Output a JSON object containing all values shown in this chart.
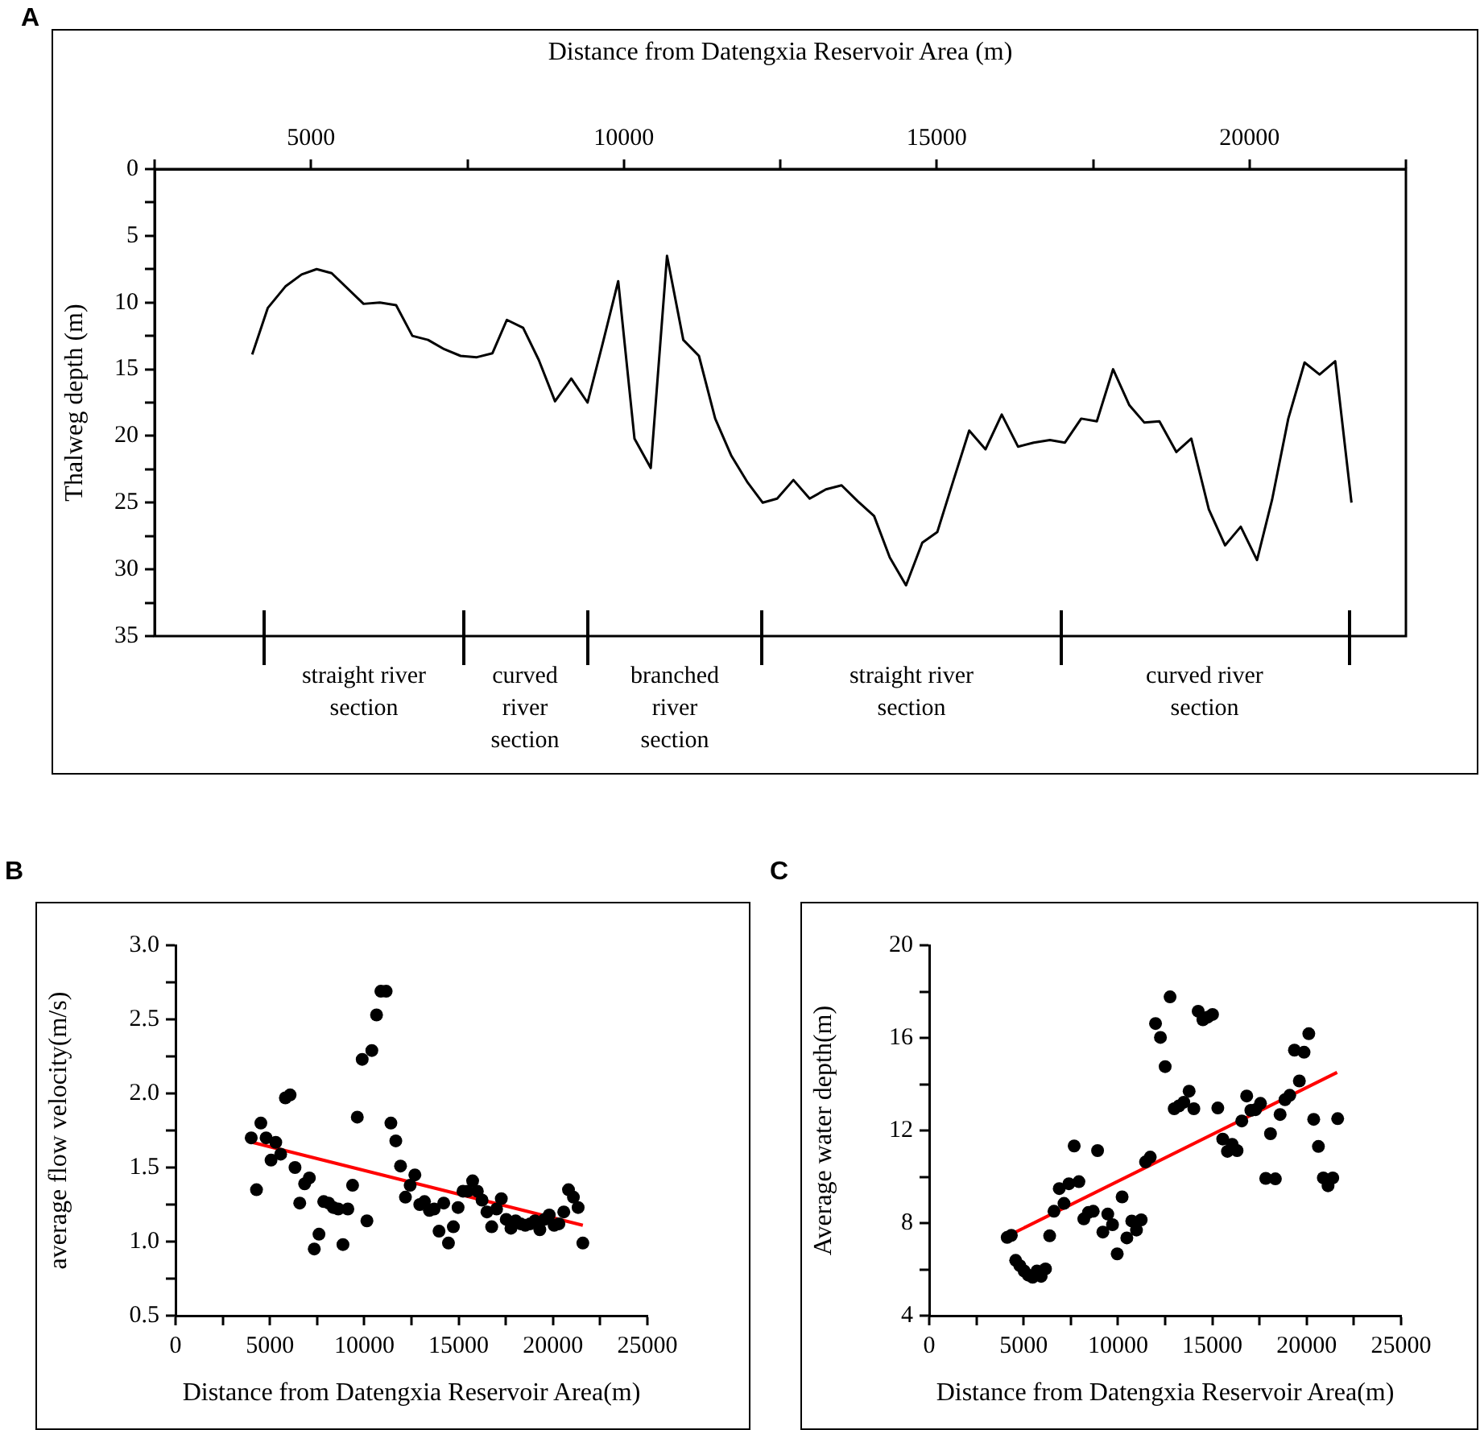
{
  "chart_data": [
    {
      "type": "line",
      "annotations": [
        "A",
        "straight river\nsection",
        "curved\nriver\nsection",
        "branched\nriver\nsection",
        "straight river\nsection",
        "curved river\nsection"
      ],
      "xlabel": "Distance from Datengxia Reservoir Area (m)",
      "ylabel": "Thalweg depth (m)",
      "color": "#000000",
      "marker": "none",
      "x": [
        4060,
        4310,
        4590,
        4850,
        5090,
        5330,
        5840,
        6100,
        6360,
        6620,
        6870,
        7130,
        7390,
        7650,
        7900,
        8130,
        8390,
        8640,
        8900,
        9160,
        9420,
        9660,
        9910,
        10170,
        10430,
        10690,
        10950,
        11200,
        11460,
        11720,
        11980,
        12220,
        12450,
        12710,
        12970,
        13230,
        13480,
        13740,
        14000,
        14250,
        14510,
        14770,
        15010,
        15270,
        15520,
        15780,
        16040,
        16300,
        16550,
        16810,
        17050,
        17310,
        17560,
        17820,
        18080,
        18320,
        18560,
        18830,
        19070,
        19350,
        19610,
        19860,
        20120,
        20360,
        20620,
        20880,
        21120,
        21370,
        21630
      ],
      "values": [
        13.9,
        10.4,
        8.8,
        7.9,
        7.5,
        7.8,
        10.1,
        10.0,
        10.2,
        12.5,
        12.8,
        13.5,
        14.0,
        14.1,
        13.8,
        11.3,
        11.9,
        14.3,
        17.4,
        15.7,
        17.5,
        13.1,
        8.4,
        20.2,
        22.4,
        6.5,
        12.8,
        14.0,
        18.7,
        21.5,
        23.5,
        25.0,
        24.7,
        23.3,
        24.7,
        24.0,
        23.7,
        24.9,
        26.0,
        29.1,
        31.2,
        28.0,
        27.2,
        23.3,
        19.6,
        21.0,
        18.4,
        20.8,
        20.5,
        20.3,
        20.5,
        18.7,
        18.9,
        15.0,
        17.7,
        19.0,
        18.9,
        21.2,
        20.2,
        25.5,
        28.2,
        26.8,
        29.3,
        24.8,
        18.7,
        14.5,
        15.4,
        14.4,
        25.0
      ],
      "xlim": [
        2500,
        22500
      ],
      "xticks": [
        {
          "value": 2500,
          "label": null
        },
        5000,
        {
          "value": 7500,
          "label": null
        },
        10000,
        {
          "value": 12500,
          "label": null
        },
        15000,
        {
          "value": 17500,
          "label": null
        },
        20000,
        {
          "value": 22500,
          "label": null
        }
      ],
      "ylim": [
        35,
        0
      ],
      "yticks": [
        0,
        {
          "value": 2.5,
          "label": null
        },
        5,
        {
          "value": 7.5,
          "label": null
        },
        10,
        {
          "value": 12.5,
          "label": null
        },
        15,
        {
          "value": 17.5,
          "label": null
        },
        20,
        {
          "value": 22.5,
          "label": null
        },
        25,
        {
          "value": 27.5,
          "label": null
        },
        30,
        {
          "value": 32.5,
          "label": null
        },
        35
      ]
    },
    {
      "type": "scatter",
      "annotations": [
        "B"
      ],
      "xlabel": "Distance from Datengxia Reservoir Area(m)",
      "ylabel": "average flow velocity(m/s)",
      "xlim": [
        0,
        25000
      ],
      "xticks": [
        0,
        {
          "value": 2500,
          "label": null
        },
        5000,
        {
          "value": 7500,
          "label": null
        },
        10000,
        {
          "value": 12500,
          "label": null
        },
        15000,
        {
          "value": 17500,
          "label": null
        },
        20000,
        {
          "value": 22500,
          "label": null
        },
        25000
      ],
      "ylim": [
        0.5,
        3.0
      ],
      "yticks": [
        {
          "value": 0.5,
          "label": "0.5"
        },
        {
          "value": 0.75,
          "label": null
        },
        {
          "value": 1,
          "label": "1.0"
        },
        {
          "value": 1.25,
          "label": null
        },
        {
          "value": 1.5,
          "label": "1.5"
        },
        {
          "value": 1.75,
          "label": null
        },
        {
          "value": 2,
          "label": "2.0"
        },
        {
          "value": 2.25,
          "label": null
        },
        {
          "value": 2.5,
          "label": "2.5"
        },
        {
          "value": 2.75,
          "label": null
        },
        {
          "value": 3,
          "label": "3.0"
        }
      ],
      "series": [
        {
          "type": "scatter",
          "color": "#000000",
          "marker": "circle",
          "x": [
            4010,
            4290,
            4520,
            4800,
            5060,
            5310,
            5570,
            5820,
            6070,
            6330,
            6580,
            6840,
            7090,
            7350,
            7600,
            7850,
            8110,
            8360,
            8620,
            8870,
            9130,
            9380,
            9630,
            9890,
            10140,
            10400,
            10650,
            10880,
            11160,
            11410,
            11670,
            11920,
            12180,
            12430,
            12680,
            12940,
            13190,
            13450,
            13700,
            13960,
            14210,
            14460,
            14720,
            14970,
            15230,
            15480,
            15740,
            15990,
            16240,
            16500,
            16750,
            17010,
            17260,
            17520,
            17770,
            18020,
            18280,
            18530,
            18790,
            19040,
            19300,
            19550,
            19800,
            20060,
            20310,
            20570,
            20820,
            21080,
            21330,
            21580
          ],
          "values": [
            1.7,
            1.35,
            1.8,
            1.7,
            1.55,
            1.67,
            1.59,
            1.97,
            1.99,
            1.5,
            1.26,
            1.39,
            1.43,
            0.95,
            1.05,
            1.27,
            1.26,
            1.23,
            1.22,
            0.98,
            1.22,
            1.38,
            1.84,
            2.23,
            1.14,
            2.29,
            2.53,
            2.69,
            2.69,
            1.8,
            1.68,
            1.51,
            1.3,
            1.38,
            1.45,
            1.25,
            1.27,
            1.21,
            1.22,
            1.07,
            1.26,
            0.99,
            1.1,
            1.23,
            1.34,
            1.34,
            1.41,
            1.34,
            1.28,
            1.2,
            1.1,
            1.22,
            1.29,
            1.15,
            1.09,
            1.14,
            1.12,
            1.11,
            1.12,
            1.14,
            1.08,
            1.15,
            1.18,
            1.11,
            1.12,
            1.2,
            1.35,
            1.3,
            1.23,
            0.99
          ]
        },
        {
          "type": "line",
          "color": "#ff0000",
          "marker": "none",
          "x": [
            4070,
            21580
          ],
          "values": [
            1.67,
            1.11
          ]
        }
      ]
    },
    {
      "type": "scatter",
      "annotations": [
        "C"
      ],
      "xlabel": "Distance from Datengxia Reservoir Area(m)",
      "ylabel": "Average water depth(m)",
      "xlim": [
        0,
        25000
      ],
      "xticks": [
        0,
        {
          "value": 2500,
          "label": null
        },
        5000,
        {
          "value": 7500,
          "label": null
        },
        10000,
        {
          "value": 12500,
          "label": null
        },
        15000,
        {
          "value": 17500,
          "label": null
        },
        20000,
        {
          "value": 22500,
          "label": null
        },
        25000
      ],
      "ylim": [
        4,
        20
      ],
      "yticks": [
        4,
        {
          "value": 6,
          "label": null
        },
        8,
        {
          "value": 10,
          "label": null
        },
        12,
        {
          "value": 14,
          "label": null
        },
        16,
        {
          "value": 18,
          "label": null
        },
        20
      ],
      "series": [
        {
          "type": "scatter",
          "color": "#000000",
          "marker": "circle",
          "x": [
            4130,
            4350,
            4580,
            4800,
            5030,
            5250,
            5480,
            5710,
            5930,
            6160,
            6380,
            6610,
            6890,
            7140,
            7400,
            7680,
            7930,
            8190,
            8440,
            8690,
            8920,
            9200,
            9460,
            9710,
            9960,
            10220,
            10470,
            10730,
            10980,
            11230,
            11460,
            11710,
            11990,
            12250,
            12500,
            12760,
            12980,
            13230,
            13490,
            13770,
            14020,
            14250,
            14500,
            14760,
            15010,
            15290,
            15550,
            15800,
            16050,
            16310,
            16560,
            16820,
            17040,
            17290,
            17550,
            17830,
            18080,
            18340,
            18590,
            18850,
            19100,
            19350,
            19610,
            19860,
            20110,
            20370,
            20620,
            20880,
            21130,
            21380,
            21640
          ],
          "values": [
            7.38,
            7.47,
            6.39,
            6.16,
            5.93,
            5.75,
            5.66,
            5.93,
            5.7,
            6.02,
            7.45,
            8.51,
            9.49,
            8.85,
            9.7,
            11.33,
            9.79,
            8.18,
            8.46,
            8.51,
            11.13,
            7.61,
            8.39,
            7.93,
            6.67,
            9.13,
            7.36,
            8.09,
            7.7,
            8.14,
            10.64,
            10.85,
            16.62,
            16.02,
            14.76,
            17.77,
            12.94,
            13.06,
            13.22,
            13.7,
            12.94,
            17.15,
            16.78,
            16.9,
            17.01,
            12.97,
            11.63,
            11.1,
            11.4,
            11.13,
            12.41,
            13.49,
            12.87,
            12.9,
            13.17,
            9.93,
            11.86,
            9.91,
            12.69,
            13.33,
            13.52,
            15.47,
            14.14,
            15.38,
            16.18,
            12.48,
            11.31,
            9.95,
            9.61,
            9.95,
            12.51
          ]
        },
        {
          "type": "line",
          "color": "#ff0000",
          "marker": "none",
          "x": [
            4130,
            21610
          ],
          "values": [
            7.43,
            14.51
          ]
        }
      ]
    }
  ]
}
